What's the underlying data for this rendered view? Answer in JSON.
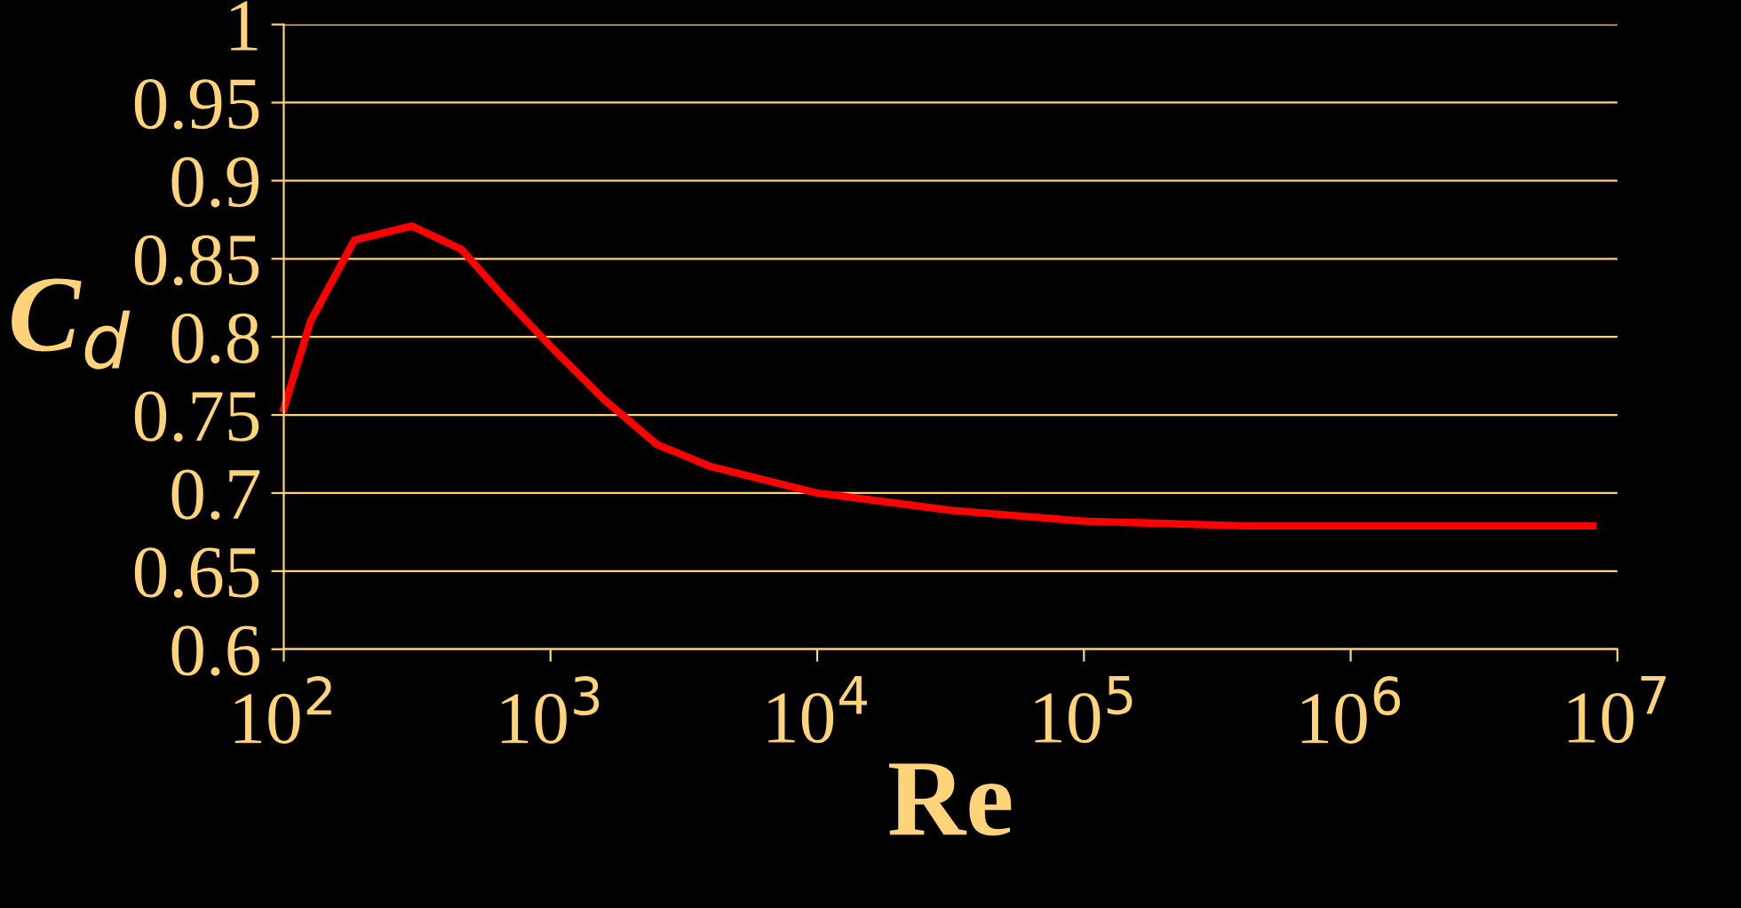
{
  "chart_data": {
    "type": "line",
    "xlabel": "Re",
    "ylabel": "C$_{d}$",
    "log": "x",
    "xlim": [
      100,
      10000000
    ],
    "xticks": [
      {
        "value": 100,
        "label": "10$^{2}$"
      },
      {
        "value": 1000,
        "label": "10$^{3}$"
      },
      {
        "value": 10000,
        "label": "10$^{4}$"
      },
      {
        "value": 100000,
        "label": "10$^{5}$"
      },
      {
        "value": 1000000,
        "label": "10$^{6}$"
      },
      {
        "value": 10000000,
        "label": "10$^{7}$"
      }
    ],
    "ylim": [
      0.6,
      1
    ],
    "yticks": [
      0.6,
      0.65,
      0.7,
      0.75,
      0.8,
      0.85,
      0.9,
      0.95,
      1
    ],
    "grid": "y",
    "marker": "none",
    "line_style": "solid",
    "series": [
      {
        "color": "#ff0000",
        "x": [
          100,
          126,
          184,
          302,
          464,
          681,
          1000,
          1585,
          2512,
          3981,
          10000,
          31623,
          100000,
          398107,
          1860000,
          8100000
        ],
        "values": [
          0.754,
          0.81,
          0.862,
          0.871,
          0.856,
          0.824,
          0.794,
          0.76,
          0.731,
          0.717,
          0.7,
          0.689,
          0.682,
          0.679,
          0.679,
          0.679
        ]
      }
    ]
  }
}
